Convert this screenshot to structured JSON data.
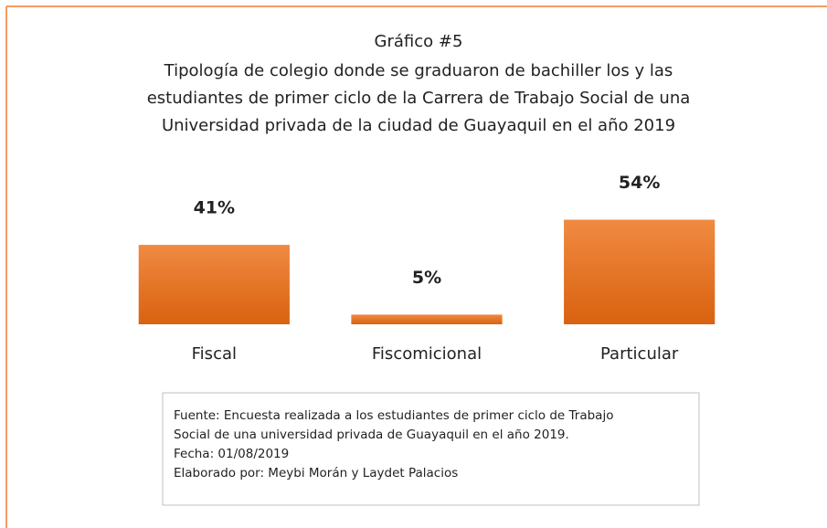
{
  "chart_data": {
    "type": "bar",
    "title": "Gráfico #5",
    "subtitle": [
      "Tipología de colegio donde se graduaron de bachiller los y las",
      "estudiantes de primer ciclo de la Carrera de Trabajo Social de una",
      "Universidad privada de la ciudad de Guayaquil en el año 2019"
    ],
    "categories": [
      "Fiscal",
      "Fiscomicional",
      "Particular"
    ],
    "values": [
      41,
      5,
      54
    ],
    "value_labels": [
      "41%",
      "5%",
      "54%"
    ],
    "color": "#ed7d31",
    "ylim": [
      0,
      100
    ],
    "notes": [
      "Fuente: Encuesta realizada a los estudiantes de primer ciclo de Trabajo",
      "Social de una universidad privada de Guayaquil en el año 2019.",
      "Fecha: 01/08/2019",
      "Elaborado por: Meybi Morán y Laydet  Palacios"
    ]
  }
}
